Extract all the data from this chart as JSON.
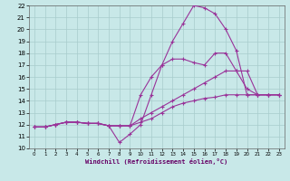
{
  "xlabel": "Windchill (Refroidissement éolien,°C)",
  "xlim": [
    -0.5,
    23.5
  ],
  "ylim": [
    10,
    22
  ],
  "xticks": [
    0,
    1,
    2,
    3,
    4,
    5,
    6,
    7,
    8,
    9,
    10,
    11,
    12,
    13,
    14,
    15,
    16,
    17,
    18,
    19,
    20,
    21,
    22,
    23
  ],
  "yticks": [
    10,
    11,
    12,
    13,
    14,
    15,
    16,
    17,
    18,
    19,
    20,
    21,
    22
  ],
  "bg_color": "#c8e8e8",
  "line_color": "#993399",
  "grid_color": "#a8cccc",
  "lines": [
    [
      11.8,
      11.8,
      12.0,
      12.2,
      12.2,
      12.1,
      12.1,
      11.9,
      10.5,
      11.2,
      12.0,
      14.5,
      17.0,
      19.0,
      20.5,
      22.0,
      21.8,
      21.3,
      20.0,
      18.2,
      14.5,
      14.5,
      14.5,
      14.5
    ],
    [
      11.8,
      11.8,
      12.0,
      12.2,
      12.2,
      12.1,
      12.1,
      11.9,
      11.9,
      11.9,
      14.5,
      16.0,
      17.0,
      17.5,
      17.5,
      17.2,
      17.0,
      18.0,
      18.0,
      16.5,
      15.0,
      14.5,
      14.5,
      14.5
    ],
    [
      11.8,
      11.8,
      12.0,
      12.2,
      12.2,
      12.1,
      12.1,
      11.9,
      11.9,
      11.9,
      12.5,
      13.0,
      13.5,
      14.0,
      14.5,
      15.0,
      15.5,
      16.0,
      16.5,
      16.5,
      16.5,
      14.5,
      14.5,
      14.5
    ],
    [
      11.8,
      11.8,
      12.0,
      12.2,
      12.2,
      12.1,
      12.1,
      11.9,
      11.9,
      11.9,
      12.2,
      12.5,
      13.0,
      13.5,
      13.8,
      14.0,
      14.2,
      14.3,
      14.5,
      14.5,
      14.5,
      14.5,
      14.5,
      14.5
    ]
  ]
}
